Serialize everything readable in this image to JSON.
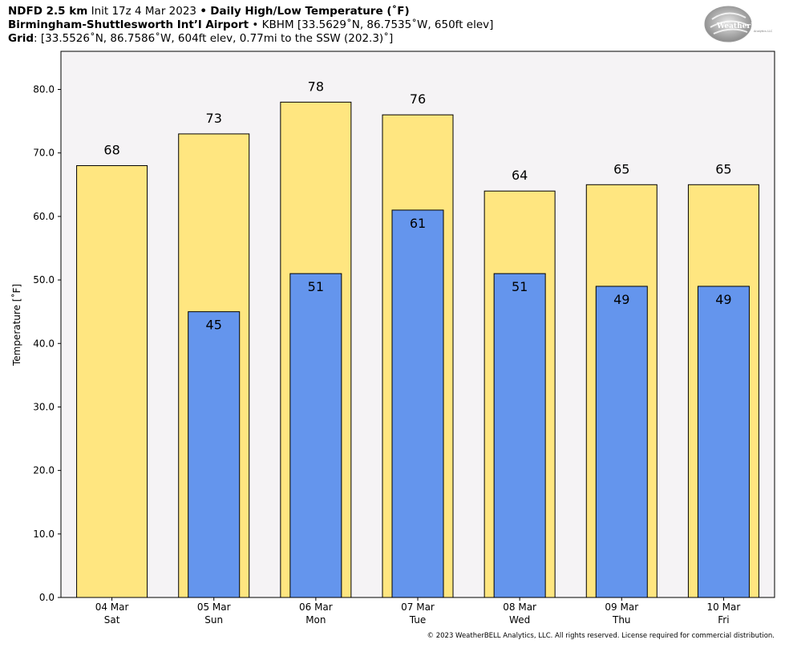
{
  "header": {
    "line1": {
      "model": "NDFD 2.5 km",
      "init": "Init 17z 4 Mar 2023",
      "sep": "•",
      "product": "Daily High/Low Temperature (˚F)"
    },
    "line2": {
      "station": "Birmingham-Shuttlesworth Int’l Airport",
      "sep": "•",
      "detail": "KBHM [33.5629˚N, 86.7535˚W, 650ft elev]"
    },
    "line3": {
      "label": "Grid",
      "detail": ": [33.5526˚N, 86.7586˚W, 604ft elev, 0.77mi to the SSW (202.3)˚]"
    }
  },
  "logo": {
    "text": "WeatherBELL",
    "sub": "Analytics LLC"
  },
  "copyright": "© 2023 WeatherBELL Analytics, LLC. All rights reserved. License required for commercial distribution.",
  "chart_data": {
    "type": "bar",
    "categories": [
      {
        "date": "04 Mar",
        "day": "Sat"
      },
      {
        "date": "05 Mar",
        "day": "Sun"
      },
      {
        "date": "06 Mar",
        "day": "Mon"
      },
      {
        "date": "07 Mar",
        "day": "Tue"
      },
      {
        "date": "08 Mar",
        "day": "Wed"
      },
      {
        "date": "09 Mar",
        "day": "Thu"
      },
      {
        "date": "10 Mar",
        "day": "Fri"
      }
    ],
    "series": [
      {
        "values": [
          68,
          73,
          78,
          76,
          64,
          65,
          65
        ],
        "color": "#ffe680"
      },
      {
        "values": [
          null,
          45,
          51,
          61,
          51,
          49,
          49
        ],
        "color": "#6495ed"
      }
    ],
    "ylabel": "Temperature [˚F]",
    "ylim": [
      0,
      86
    ],
    "yticks": [
      "0.0",
      "10.0",
      "20.0",
      "30.0",
      "40.0",
      "50.0",
      "60.0",
      "70.0",
      "80.0"
    ],
    "plot_background": "#f5f3f5",
    "grid": false
  }
}
